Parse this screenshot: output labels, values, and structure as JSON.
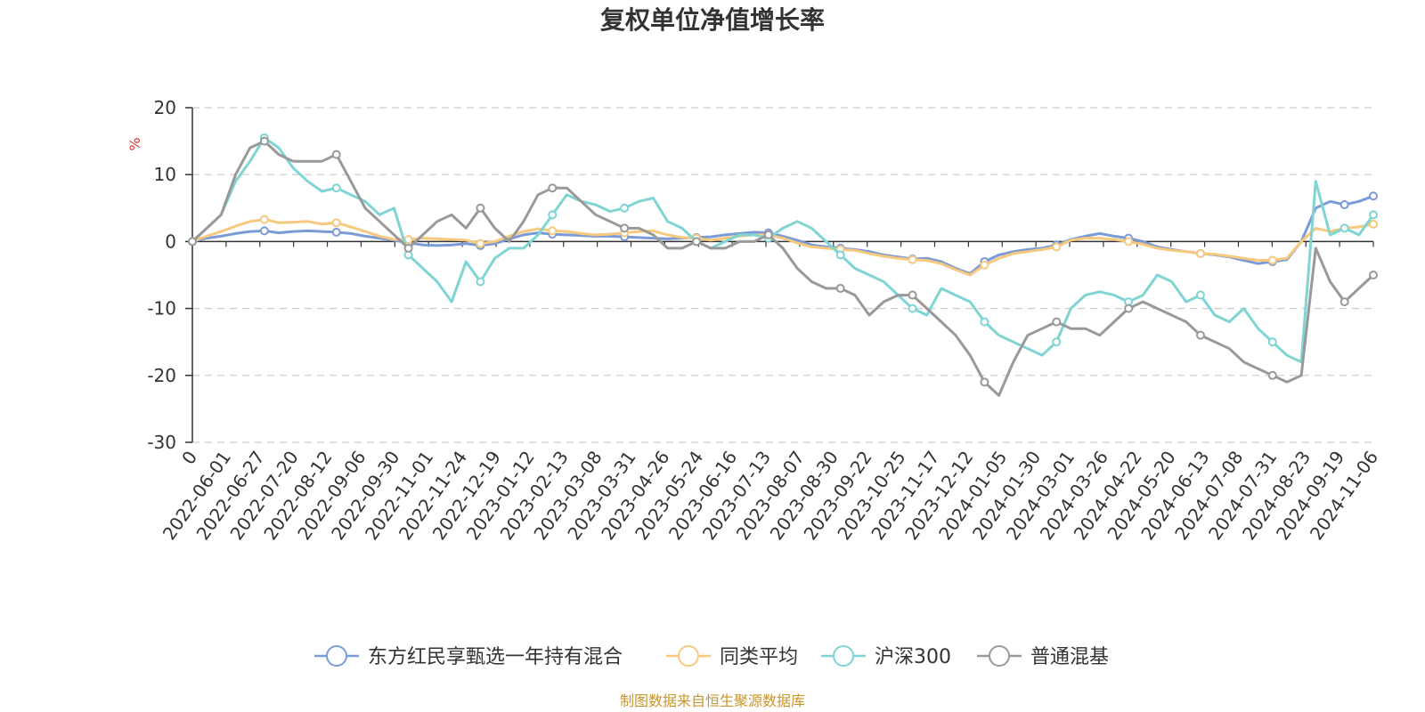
{
  "chart_data": {
    "type": "line",
    "title": "复权单位净值增长率",
    "unit_label": "%",
    "source": "制图数据来自恒生聚源数据库",
    "ylim": [
      -30,
      20
    ],
    "y_ticks": [
      "20",
      "10",
      "0",
      "-10",
      "-20",
      "-30"
    ],
    "x_origin_label": "0",
    "x_ticks": [
      "2022-06-01",
      "2022-06-27",
      "2022-07-20",
      "2022-08-12",
      "2022-09-06",
      "2022-09-30",
      "2022-11-01",
      "2022-11-24",
      "2022-12-19",
      "2023-01-12",
      "2023-02-13",
      "2023-03-08",
      "2023-03-31",
      "2023-04-26",
      "2023-05-24",
      "2023-06-16",
      "2023-07-13",
      "2023-08-07",
      "2023-08-30",
      "2023-09-22",
      "2023-10-25",
      "2023-11-17",
      "2023-12-12",
      "2024-01-05",
      "2024-01-30",
      "2024-03-01",
      "2024-03-26",
      "2024-04-22",
      "2024-05-20",
      "2024-06-13",
      "2024-07-08",
      "2024-07-31",
      "2024-08-23",
      "2024-09-19",
      "2024-11-06"
    ],
    "grid": "horizontal dashed",
    "legend_position": "bottom",
    "series": [
      {
        "name": "东方红民享甄选一年持有混合",
        "color": "#7b9bd6",
        "values": [
          0,
          0.5,
          0.8,
          1.2,
          1.5,
          1.6,
          1.3,
          1.5,
          1.6,
          1.5,
          1.4,
          1.2,
          0.8,
          0.5,
          0.2,
          -0.2,
          -0.5,
          -0.6,
          -0.5,
          -0.3,
          -0.6,
          -0.3,
          0.4,
          1.0,
          1.3,
          1.1,
          1.0,
          0.9,
          0.8,
          0.8,
          0.7,
          0.6,
          0.5,
          0.4,
          0.5,
          0.6,
          0.7,
          1.0,
          1.2,
          1.4,
          1.3,
          0.8,
          0.2,
          -0.5,
          -0.8,
          -1.0,
          -1.2,
          -1.5,
          -2.0,
          -2.3,
          -2.6,
          -2.5,
          -3.0,
          -4.0,
          -4.8,
          -3.0,
          -2.0,
          -1.5,
          -1.2,
          -1.0,
          -0.5,
          0.3,
          0.8,
          1.2,
          0.8,
          0.5,
          0,
          -0.8,
          -1.2,
          -1.5,
          -1.8,
          -2.0,
          -2.3,
          -2.8,
          -3.3,
          -3.0,
          -2.7,
          0,
          5,
          6,
          5.5,
          6,
          6.8
        ]
      },
      {
        "name": "同类平均",
        "color": "#f6c97f",
        "values": [
          0,
          0.8,
          1.5,
          2.3,
          3.0,
          3.3,
          2.8,
          2.9,
          3.0,
          2.6,
          2.8,
          2.2,
          1.5,
          0.8,
          0.3,
          0.3,
          0.5,
          0.4,
          0.3,
          0.2,
          -0.3,
          0,
          0.8,
          1.5,
          1.9,
          1.6,
          1.5,
          1.2,
          1.0,
          1.1,
          1.3,
          1.5,
          1.6,
          1.0,
          0.6,
          0.5,
          0.2,
          0.5,
          0.8,
          1.0,
          1.0,
          0.5,
          -0.2,
          -0.8,
          -1.0,
          -1.2,
          -1.3,
          -1.8,
          -2.2,
          -2.5,
          -2.7,
          -2.8,
          -3.3,
          -4.2,
          -5.0,
          -3.5,
          -2.5,
          -1.8,
          -1.5,
          -1.2,
          -0.8,
          0.2,
          0.5,
          0.5,
          0.3,
          0,
          -0.4,
          -1.0,
          -1.3,
          -1.5,
          -1.8,
          -1.9,
          -2.2,
          -2.5,
          -2.8,
          -2.8,
          -2.5,
          0,
          2,
          1.5,
          2,
          2.2,
          2.6
        ]
      },
      {
        "name": "沪深300",
        "color": "#7fd4d4",
        "values": [
          0,
          2,
          4,
          9,
          12,
          15.5,
          14,
          11,
          9,
          7.5,
          8,
          7,
          6,
          4,
          5,
          -2,
          -4,
          -6,
          -9,
          -3,
          -6,
          -2.5,
          -1,
          -1,
          1,
          4,
          7,
          6,
          5.5,
          4.5,
          5,
          6,
          6.5,
          3,
          2,
          0,
          -1,
          0,
          1,
          1,
          0.5,
          2,
          3,
          2,
          0,
          -2,
          -4,
          -5,
          -6,
          -8,
          -10,
          -11,
          -7,
          -8,
          -9,
          -12,
          -14,
          -15,
          -16,
          -17,
          -15,
          -10,
          -8,
          -7.5,
          -8,
          -9,
          -8,
          -5,
          -6,
          -9,
          -8,
          -11,
          -12,
          -10,
          -13,
          -15,
          -17,
          -18,
          9,
          1,
          2,
          1,
          4
        ]
      },
      {
        "name": "普通混基",
        "color": "#999999",
        "values": [
          0,
          2,
          4,
          10,
          14,
          15,
          13,
          12,
          12,
          12,
          13,
          9,
          5,
          3,
          1,
          -1,
          1,
          3,
          4,
          2,
          5,
          2,
          0,
          3,
          7,
          8,
          8,
          6,
          4,
          3,
          2,
          2,
          1,
          -1,
          -1,
          0,
          -1,
          -1,
          0,
          0,
          1,
          -1,
          -4,
          -6,
          -7,
          -7,
          -8,
          -11,
          -9,
          -8,
          -8,
          -10,
          -12,
          -14,
          -17,
          -21,
          -23,
          -18,
          -14,
          -13,
          -12,
          -13,
          -13,
          -14,
          -12,
          -10,
          -9,
          -10,
          -11,
          -12,
          -14,
          -15,
          -16,
          -18,
          -19,
          -20,
          -21,
          -20,
          -1,
          -6,
          -9,
          -7,
          -5
        ]
      }
    ]
  }
}
